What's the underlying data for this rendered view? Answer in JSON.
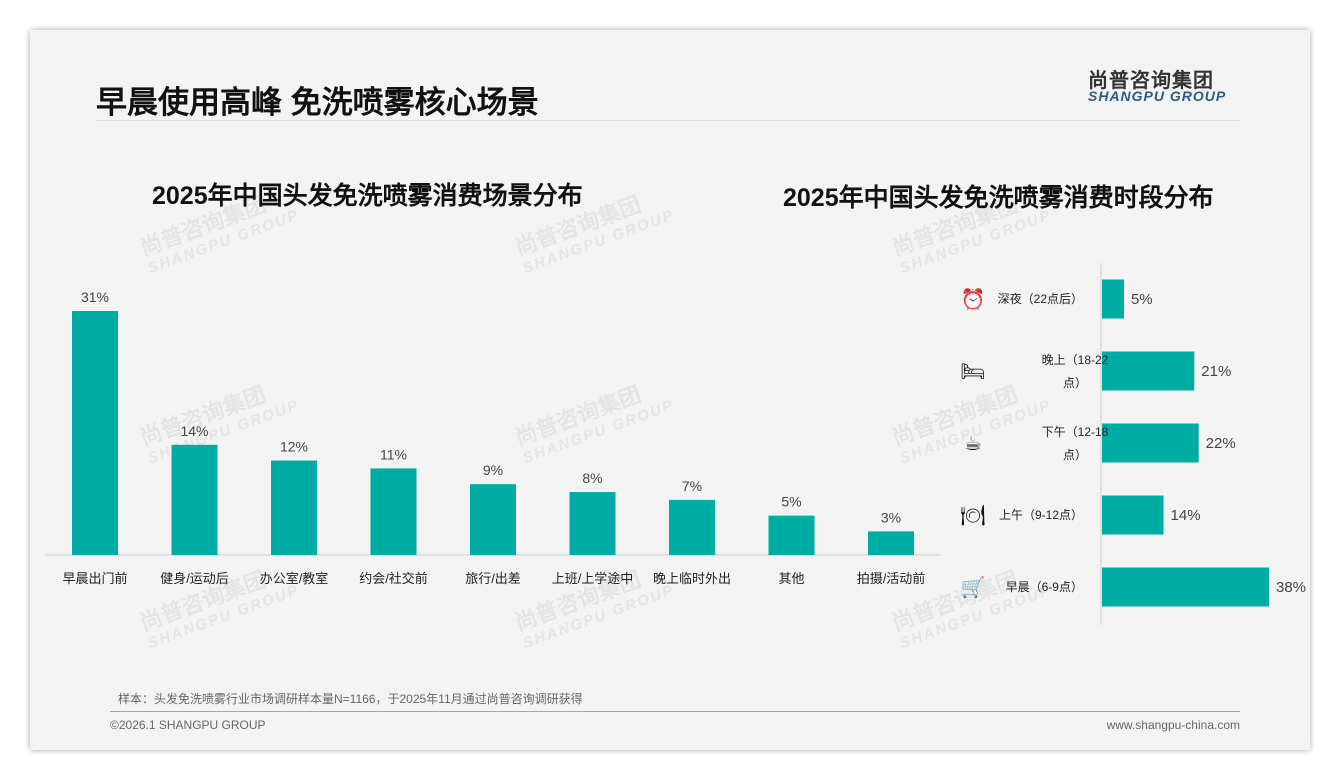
{
  "header": {
    "title": "早晨使用高峰 免洗喷雾核心场景",
    "logo_cn": "尚普咨询集团",
    "logo_en": "SHANGPU GROUP"
  },
  "watermark": {
    "cn": "尚普咨询集团",
    "en": "SHANGPU GROUP"
  },
  "footer": {
    "note": "样本：头发免洗喷雾行业市场调研样本量N=1166，于2025年11月通过尚普咨询调研获得",
    "copyright": "©2026.1 SHANGPU GROUP",
    "url": "www.shangpu-china.com"
  },
  "colors": {
    "bar": "#00ADA5"
  },
  "chart_data": [
    {
      "type": "bar",
      "title": "2025年中国头发免洗喷雾消费场景分布",
      "categories": [
        "早晨出门前",
        "健身/运动后",
        "办公室/教室",
        "约会/社交前",
        "旅行/出差",
        "上班/上学途中",
        "晚上临时外出",
        "其他",
        "拍摄/活动前"
      ],
      "values": [
        31,
        14,
        12,
        11,
        9,
        8,
        7,
        5,
        3
      ],
      "labels": [
        "31%",
        "14%",
        "12%",
        "11%",
        "9%",
        "8%",
        "7%",
        "5%",
        "3%"
      ],
      "ylim": [
        0,
        32
      ]
    },
    {
      "type": "bar",
      "orientation": "horizontal",
      "title": "2025年中国头发免洗喷雾消费时段分布",
      "categories": [
        "深夜（22点后）",
        "晚上（18-22点）",
        "下午（12-18点）",
        "上午（9-12点）",
        "早晨（6-9点）"
      ],
      "icons": [
        "alarm-clock-icon",
        "bed-icon",
        "coffee-cup-icon",
        "dining-plate-icon",
        "shopping-cart-icon"
      ],
      "values": [
        5,
        21,
        22,
        14,
        38
      ],
      "labels": [
        "5%",
        "21%",
        "22%",
        "14%",
        "38%"
      ],
      "xlim": [
        0,
        38
      ]
    }
  ]
}
